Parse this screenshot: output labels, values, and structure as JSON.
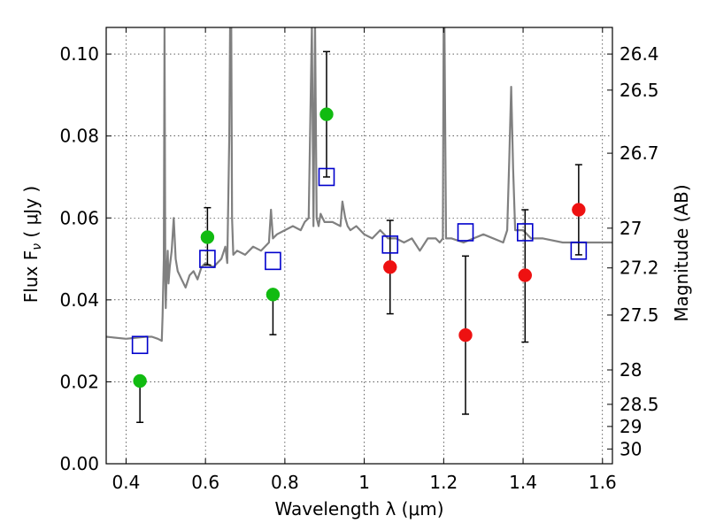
{
  "chart_data": {
    "type": "scatter",
    "xlabel": "Wavelength  λ (μm)",
    "ylabel": "Flux  F",
    "ylabel_sub": "ν",
    "ylabel_unit": "  ( μJy )",
    "y2label": "Magnitude (AB)",
    "xlim": [
      0.35,
      1.625
    ],
    "ylim": [
      0.0,
      0.1065
    ],
    "grid": true,
    "x_ticks": [
      0.4,
      0.6,
      0.8,
      1.0,
      1.2,
      1.4,
      1.6
    ],
    "x_tick_labels": [
      "0.4",
      "0.6",
      "0.8",
      "1",
      "1.2",
      "1.4",
      "1.6"
    ],
    "y_ticks": [
      0.0,
      0.02,
      0.04,
      0.06,
      0.08,
      0.1
    ],
    "y_tick_labels": [
      "0.00",
      "0.02",
      "0.04",
      "0.06",
      "0.08",
      "0.10"
    ],
    "y2_ticks": [
      {
        "label": "26.4",
        "flux": 0.1
      },
      {
        "label": "26.5",
        "flux": 0.0912
      },
      {
        "label": "26.7",
        "flux": 0.0758
      },
      {
        "label": "27",
        "flux": 0.0575
      },
      {
        "label": "27.2",
        "flux": 0.0478
      },
      {
        "label": "27.5",
        "flux": 0.0363
      },
      {
        "label": "28",
        "flux": 0.0229
      },
      {
        "label": "28.5",
        "flux": 0.0145
      },
      {
        "label": "29",
        "flux": 0.0091
      },
      {
        "label": "30",
        "flux": 0.0036
      }
    ],
    "series": [
      {
        "type": "line",
        "color": "#808080",
        "x": [
          0.35,
          0.4,
          0.45,
          0.465,
          0.48,
          0.49,
          0.492,
          0.495,
          0.497,
          0.499,
          0.5,
          0.502,
          0.505,
          0.507,
          0.51,
          0.515,
          0.52,
          0.525,
          0.53,
          0.54,
          0.55,
          0.56,
          0.57,
          0.58,
          0.59,
          0.6,
          0.62,
          0.64,
          0.65,
          0.655,
          0.66,
          0.662,
          0.665,
          0.667,
          0.67,
          0.68,
          0.7,
          0.72,
          0.74,
          0.76,
          0.765,
          0.77,
          0.78,
          0.8,
          0.82,
          0.84,
          0.85,
          0.86,
          0.868,
          0.872,
          0.876,
          0.88,
          0.885,
          0.89,
          0.895,
          0.9,
          0.92,
          0.94,
          0.945,
          0.952,
          0.958,
          0.965,
          0.98,
          1.0,
          1.02,
          1.04,
          1.06,
          1.08,
          1.1,
          1.12,
          1.14,
          1.16,
          1.18,
          1.19,
          1.198,
          1.2,
          1.202,
          1.206,
          1.21,
          1.22,
          1.25,
          1.3,
          1.35,
          1.36,
          1.365,
          1.37,
          1.375,
          1.38,
          1.4,
          1.42,
          1.45,
          1.5,
          1.55,
          1.6,
          1.625
        ],
        "y": [
          0.031,
          0.0305,
          0.031,
          0.031,
          0.0305,
          0.03,
          0.036,
          0.05,
          0.107,
          0.045,
          0.038,
          0.046,
          0.052,
          0.044,
          0.048,
          0.052,
          0.06,
          0.05,
          0.047,
          0.045,
          0.043,
          0.046,
          0.047,
          0.045,
          0.048,
          0.049,
          0.048,
          0.05,
          0.053,
          0.049,
          0.08,
          0.107,
          0.107,
          0.06,
          0.051,
          0.052,
          0.051,
          0.053,
          0.052,
          0.054,
          0.062,
          0.055,
          0.056,
          0.057,
          0.058,
          0.057,
          0.059,
          0.06,
          0.107,
          0.058,
          0.107,
          0.06,
          0.058,
          0.061,
          0.06,
          0.059,
          0.059,
          0.058,
          0.064,
          0.06,
          0.058,
          0.057,
          0.058,
          0.056,
          0.055,
          0.057,
          0.055,
          0.055,
          0.054,
          0.055,
          0.052,
          0.055,
          0.055,
          0.054,
          0.055,
          0.107,
          0.107,
          0.055,
          0.055,
          0.055,
          0.054,
          0.056,
          0.054,
          0.057,
          0.074,
          0.092,
          0.072,
          0.057,
          0.057,
          0.055,
          0.055,
          0.054,
          0.054,
          0.054,
          0.054
        ]
      },
      {
        "type": "scatter",
        "marker": "square-open",
        "color": "#0000cc",
        "x": [
          0.435,
          0.605,
          0.77,
          0.905,
          1.065,
          1.255,
          1.405,
          1.54
        ],
        "y": [
          0.029,
          0.05,
          0.0495,
          0.07,
          0.0535,
          0.0565,
          0.0565,
          0.052
        ]
      },
      {
        "type": "scatter",
        "marker": "circle",
        "color": "#11bb11",
        "x": [
          0.435,
          0.605,
          0.77,
          0.905
        ],
        "y": [
          0.0202,
          0.0553,
          0.0413,
          0.0853
        ],
        "yerr_low": [
          0.0101,
          0.0068,
          0.0098,
          0.0153
        ],
        "yerr_high": [
          0.0,
          0.0072,
          0.0,
          0.0153
        ]
      },
      {
        "type": "scatter",
        "marker": "circle",
        "color": "#ee1111",
        "x": [
          1.065,
          1.255,
          1.405,
          1.54
        ],
        "y": [
          0.048,
          0.0314,
          0.046,
          0.062
        ],
        "yerr_low": [
          0.0114,
          0.0193,
          0.0163,
          0.011
        ],
        "yerr_high": [
          0.0114,
          0.0193,
          0.016,
          0.011
        ]
      }
    ]
  }
}
